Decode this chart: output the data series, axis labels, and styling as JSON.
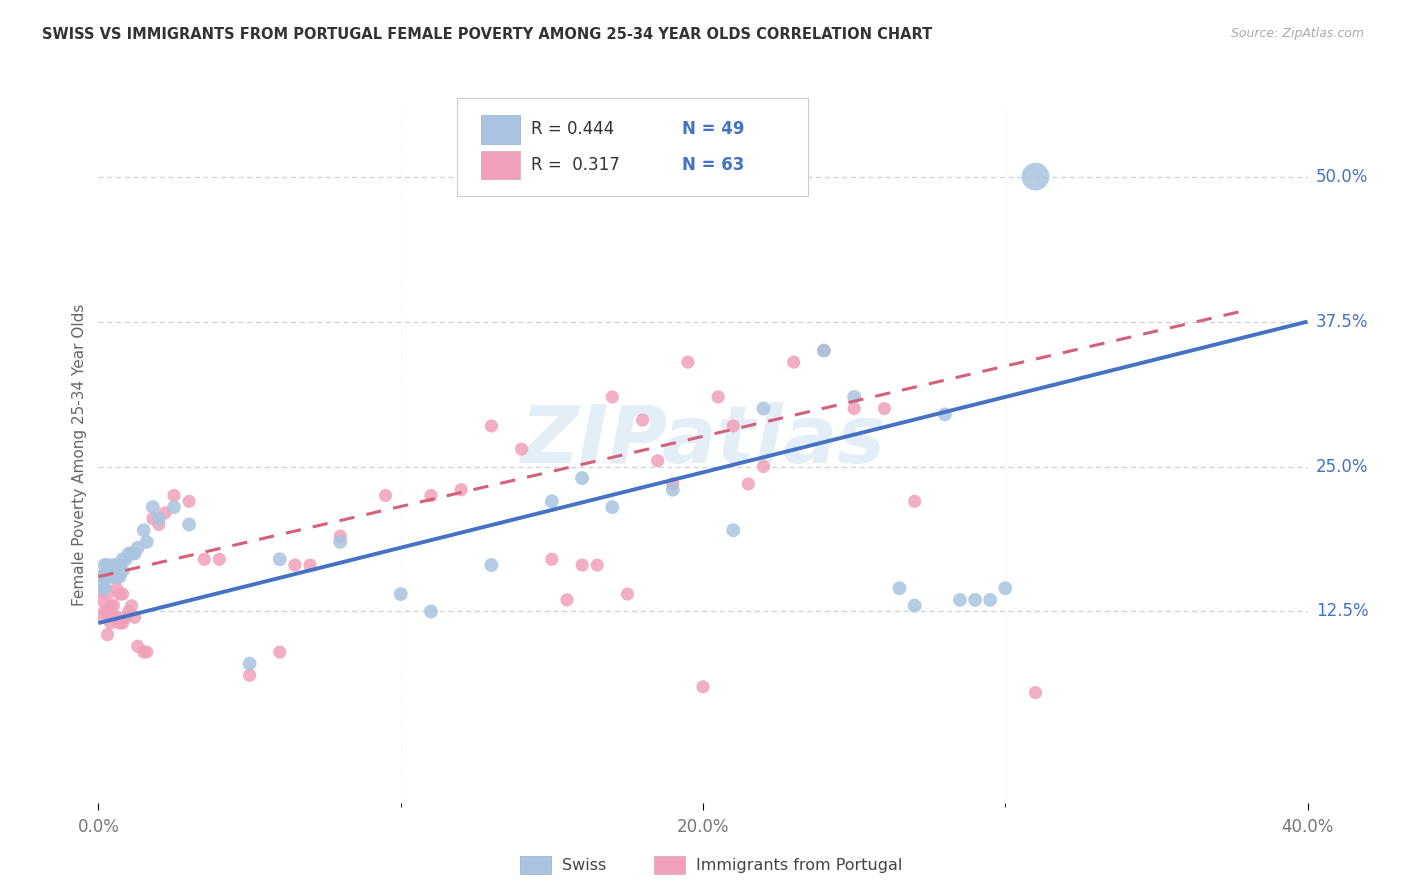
{
  "title": "SWISS VS IMMIGRANTS FROM PORTUGAL FEMALE POVERTY AMONG 25-34 YEAR OLDS CORRELATION CHART",
  "source": "Source: ZipAtlas.com",
  "ylabel": "Female Poverty Among 25-34 Year Olds",
  "xlim": [
    0.0,
    0.4
  ],
  "ylim": [
    -0.04,
    0.56
  ],
  "xtick_labels": [
    "0.0%",
    "20.0%",
    "40.0%"
  ],
  "xtick_vals": [
    0.0,
    0.2,
    0.4
  ],
  "xtick_minor_vals": [
    0.1,
    0.3
  ],
  "ytick_labels": [
    "12.5%",
    "25.0%",
    "37.5%",
    "50.0%"
  ],
  "ytick_vals": [
    0.125,
    0.25,
    0.375,
    0.5
  ],
  "legend_R_swiss": "0.444",
  "legend_N_swiss": "49",
  "legend_R_port": "0.317",
  "legend_N_port": "63",
  "swiss_color": "#a8c4e0",
  "port_color": "#f0a0b8",
  "swiss_line_color": "#4472c4",
  "port_line_color": "#d4607c",
  "watermark": "ZIPatlas",
  "swiss_x": [
    0.001,
    0.001,
    0.002,
    0.002,
    0.003,
    0.003,
    0.004,
    0.004,
    0.005,
    0.005,
    0.006,
    0.006,
    0.007,
    0.007,
    0.008,
    0.008,
    0.009,
    0.01,
    0.011,
    0.012,
    0.013,
    0.015,
    0.016,
    0.018,
    0.02,
    0.025,
    0.03,
    0.05,
    0.06,
    0.08,
    0.1,
    0.11,
    0.13,
    0.15,
    0.16,
    0.17,
    0.19,
    0.21,
    0.22,
    0.24,
    0.25,
    0.265,
    0.27,
    0.28,
    0.285,
    0.29,
    0.295,
    0.3,
    0.31
  ],
  "swiss_y": [
    0.155,
    0.145,
    0.165,
    0.145,
    0.165,
    0.155,
    0.16,
    0.155,
    0.165,
    0.155,
    0.165,
    0.155,
    0.165,
    0.155,
    0.17,
    0.16,
    0.17,
    0.175,
    0.175,
    0.175,
    0.18,
    0.195,
    0.185,
    0.215,
    0.205,
    0.215,
    0.2,
    0.08,
    0.17,
    0.185,
    0.14,
    0.125,
    0.165,
    0.22,
    0.24,
    0.215,
    0.23,
    0.195,
    0.3,
    0.35,
    0.31,
    0.145,
    0.13,
    0.295,
    0.135,
    0.135,
    0.135,
    0.145,
    0.5
  ],
  "swiss_sizes": [
    100,
    100,
    100,
    100,
    100,
    100,
    100,
    100,
    100,
    100,
    100,
    100,
    100,
    100,
    100,
    100,
    100,
    100,
    100,
    100,
    100,
    100,
    100,
    100,
    100,
    100,
    100,
    100,
    100,
    100,
    100,
    100,
    100,
    100,
    100,
    100,
    100,
    100,
    100,
    100,
    100,
    100,
    100,
    100,
    100,
    100,
    100,
    100,
    400
  ],
  "port_x": [
    0.001,
    0.001,
    0.001,
    0.002,
    0.002,
    0.003,
    0.003,
    0.003,
    0.004,
    0.004,
    0.005,
    0.005,
    0.006,
    0.006,
    0.007,
    0.007,
    0.008,
    0.008,
    0.009,
    0.01,
    0.011,
    0.012,
    0.013,
    0.015,
    0.016,
    0.018,
    0.02,
    0.022,
    0.025,
    0.03,
    0.035,
    0.04,
    0.05,
    0.06,
    0.065,
    0.07,
    0.08,
    0.095,
    0.11,
    0.12,
    0.13,
    0.14,
    0.15,
    0.155,
    0.16,
    0.165,
    0.17,
    0.175,
    0.18,
    0.185,
    0.19,
    0.195,
    0.2,
    0.205,
    0.21,
    0.215,
    0.22,
    0.23,
    0.24,
    0.25,
    0.26,
    0.27,
    0.31
  ],
  "port_y": [
    0.155,
    0.135,
    0.12,
    0.145,
    0.125,
    0.14,
    0.125,
    0.105,
    0.13,
    0.115,
    0.13,
    0.12,
    0.145,
    0.12,
    0.14,
    0.115,
    0.14,
    0.115,
    0.12,
    0.125,
    0.13,
    0.12,
    0.095,
    0.09,
    0.09,
    0.205,
    0.2,
    0.21,
    0.225,
    0.22,
    0.17,
    0.17,
    0.07,
    0.09,
    0.165,
    0.165,
    0.19,
    0.225,
    0.225,
    0.23,
    0.285,
    0.265,
    0.17,
    0.135,
    0.165,
    0.165,
    0.31,
    0.14,
    0.29,
    0.255,
    0.235,
    0.34,
    0.06,
    0.31,
    0.285,
    0.235,
    0.25,
    0.34,
    0.35,
    0.3,
    0.3,
    0.22,
    0.055
  ],
  "swiss_line_x0": 0.0,
  "swiss_line_x1": 0.4,
  "swiss_line_y0": 0.115,
  "swiss_line_y1": 0.375,
  "port_line_x0": 0.0,
  "port_line_x1": 0.38,
  "port_line_y0": 0.155,
  "port_line_y1": 0.385
}
